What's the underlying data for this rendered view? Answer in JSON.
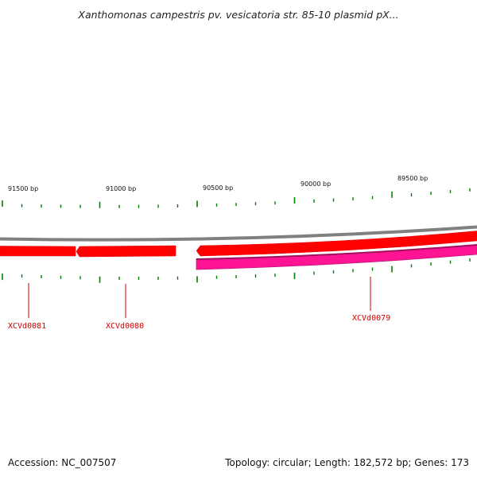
{
  "title": "Xanthomonas campestris pv. vesicatoria str. 85-10 plasmid pX...",
  "footer": {
    "accession_label": "Accession:",
    "accession": "NC_007507",
    "topology_label": "Topology:",
    "topology": "circular",
    "length_label": "Length:",
    "length": "182,572 bp",
    "genes_label": "Genes:",
    "genes": "173"
  },
  "colors": {
    "forward_gene": "#ff0000",
    "reverse_gene": "#ff1493",
    "backbone": "#808080",
    "tick": "#008000",
    "label": "#d40000"
  },
  "scale": {
    "labels": [
      "91500 bp",
      "91000 bp",
      "90500 bp",
      "90000 bp",
      "89500 bp"
    ]
  },
  "genes": [
    {
      "id": "XCVd0081",
      "strand": "forward"
    },
    {
      "id": "XCVd0080",
      "strand": "forward"
    },
    {
      "id": "XCVd0079",
      "strand": "reverse"
    }
  ]
}
